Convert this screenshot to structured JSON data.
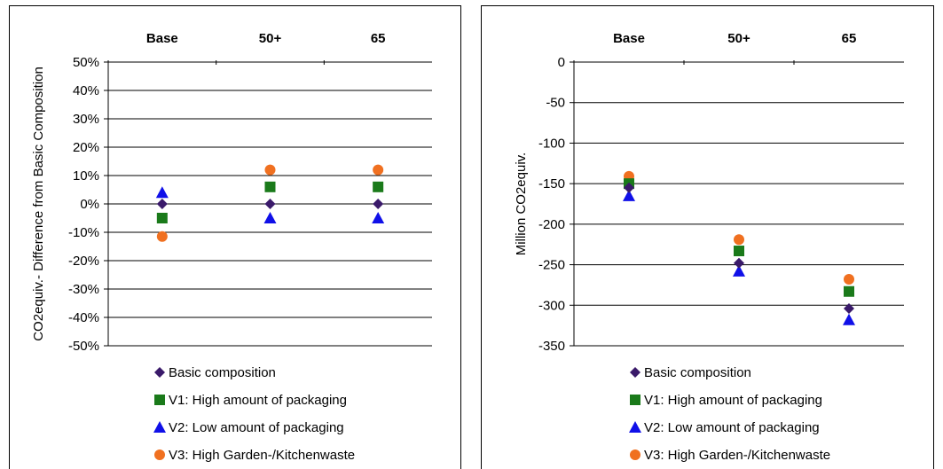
{
  "chart_data": [
    {
      "type": "scatter",
      "categories": [
        "Base",
        "50+",
        "65"
      ],
      "ylabel": "CO2equiv.- Difference from Basic Composition",
      "ylim": [
        -50,
        50
      ],
      "yticks": [
        50,
        40,
        30,
        20,
        10,
        0,
        -10,
        -20,
        -30,
        -40,
        -50
      ],
      "ytick_labels": [
        "50%",
        "40%",
        "30%",
        "20%",
        "10%",
        "0%",
        "-10%",
        "-20%",
        "-30%",
        "-40%",
        "-50%"
      ],
      "y_unit": "percent",
      "grid": true,
      "legend_position": "bottom",
      "series": [
        {
          "name": "Basic composition",
          "marker": "diamond",
          "color": "#3a1a6a",
          "values": [
            0,
            0,
            0
          ]
        },
        {
          "name": "V1: High amount of packaging",
          "marker": "square",
          "color": "#1a7a1a",
          "values": [
            -5,
            6,
            6
          ]
        },
        {
          "name": "V2: Low amount of packaging",
          "marker": "triangle",
          "color": "#1010e8",
          "values": [
            4,
            -5,
            -5
          ]
        },
        {
          "name": "V3: High Garden-/Kitchenwaste",
          "marker": "circle",
          "color": "#f07020",
          "values": [
            -11.5,
            12,
            12
          ]
        }
      ]
    },
    {
      "type": "scatter",
      "categories": [
        "Base",
        "50+",
        "65"
      ],
      "ylabel": "Million CO2equiv.",
      "ylim": [
        -350,
        0
      ],
      "yticks": [
        0,
        -50,
        -100,
        -150,
        -200,
        -250,
        -300,
        -350
      ],
      "ytick_labels": [
        "0",
        "-50",
        "-100",
        "-150",
        "-200",
        "-250",
        "-300",
        "-350"
      ],
      "grid": true,
      "legend_position": "bottom",
      "series": [
        {
          "name": "Basic composition",
          "marker": "diamond",
          "color": "#3a1a6a",
          "values": [
            -155,
            -248,
            -304
          ]
        },
        {
          "name": "V1: High amount of packaging",
          "marker": "square",
          "color": "#1a7a1a",
          "values": [
            -150,
            -233,
            -283
          ]
        },
        {
          "name": "V2: Low amount of packaging",
          "marker": "triangle",
          "color": "#1010e8",
          "values": [
            -165,
            -258,
            -318
          ]
        },
        {
          "name": "V3: High Garden-/Kitchenwaste",
          "marker": "circle",
          "color": "#f07020",
          "values": [
            -141,
            -219,
            -268
          ]
        }
      ]
    }
  ]
}
